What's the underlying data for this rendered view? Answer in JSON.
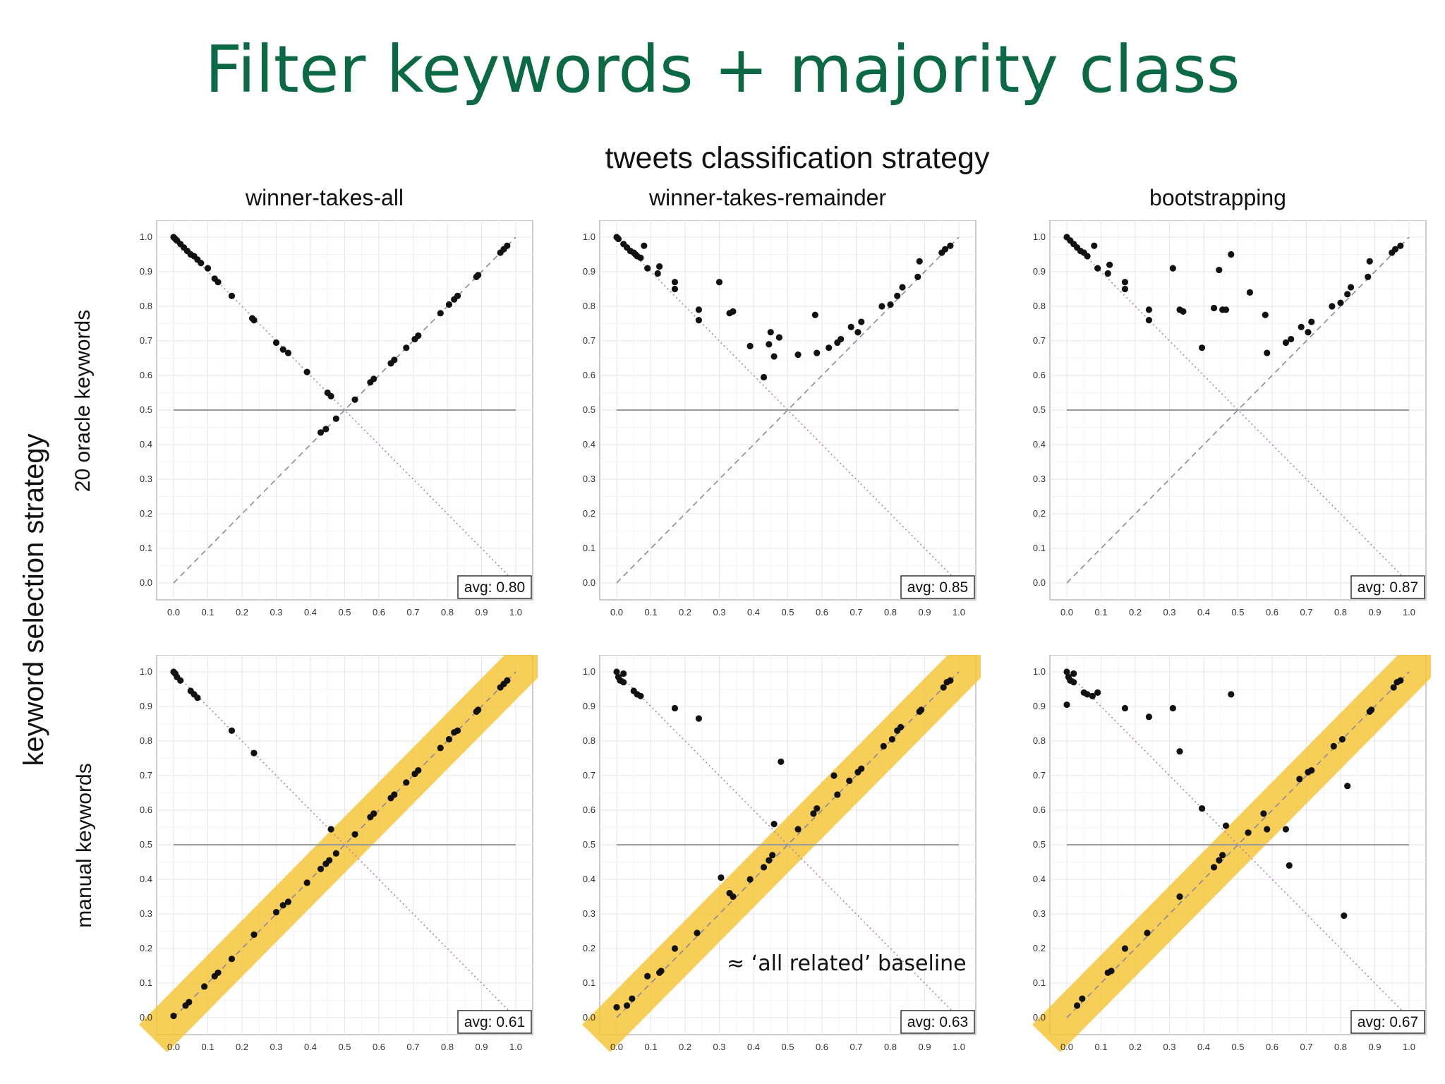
{
  "title": "Filter keywords + majority class",
  "column_axis_title": "tweets classification strategy",
  "column_titles": [
    "winner-takes-all",
    "winner-takes-remainder",
    "bootstrapping"
  ],
  "row_axis_title": "keyword selection strategy",
  "row_titles": [
    "20 oracle keywords",
    "manual keywords"
  ],
  "baseline_note": "≈ ‘all related’ baseline",
  "colors": {
    "title": "#0b6a45",
    "points": "#111111",
    "highlight": "#f5c22f",
    "diagonal": "#8a8aa0",
    "anti_diagonal": "#b080b0",
    "hline": "#999999"
  },
  "chart_data": [
    {
      "type": "scatter",
      "row": "20 oracle keywords",
      "column": "winner-takes-all",
      "xlim": [
        0,
        1
      ],
      "ylim": [
        0,
        1
      ],
      "ticks": [
        "0.0",
        "0.1",
        "0.2",
        "0.3",
        "0.4",
        "0.5",
        "0.6",
        "0.7",
        "0.8",
        "0.9",
        "1.0"
      ],
      "grid": true,
      "annotation": "avg: 0.80",
      "highlight_diagonal": false,
      "reference_lines": [
        "y = x (dashed)",
        "y = 1 - x (dotted)",
        "y = 0.5"
      ],
      "points": [
        [
          0.0,
          1.0
        ],
        [
          0.005,
          0.995
        ],
        [
          0.01,
          0.99
        ],
        [
          0.02,
          0.98
        ],
        [
          0.03,
          0.97
        ],
        [
          0.04,
          0.96
        ],
        [
          0.05,
          0.95
        ],
        [
          0.06,
          0.945
        ],
        [
          0.07,
          0.935
        ],
        [
          0.08,
          0.925
        ],
        [
          0.1,
          0.91
        ],
        [
          0.12,
          0.88
        ],
        [
          0.13,
          0.87
        ],
        [
          0.17,
          0.83
        ],
        [
          0.23,
          0.765
        ],
        [
          0.235,
          0.76
        ],
        [
          0.3,
          0.695
        ],
        [
          0.32,
          0.675
        ],
        [
          0.335,
          0.665
        ],
        [
          0.39,
          0.61
        ],
        [
          0.45,
          0.55
        ],
        [
          0.46,
          0.54
        ],
        [
          0.43,
          0.435
        ],
        [
          0.445,
          0.445
        ],
        [
          0.475,
          0.475
        ],
        [
          0.53,
          0.53
        ],
        [
          0.575,
          0.58
        ],
        [
          0.585,
          0.59
        ],
        [
          0.635,
          0.635
        ],
        [
          0.645,
          0.645
        ],
        [
          0.68,
          0.68
        ],
        [
          0.705,
          0.705
        ],
        [
          0.715,
          0.715
        ],
        [
          0.78,
          0.78
        ],
        [
          0.805,
          0.805
        ],
        [
          0.82,
          0.82
        ],
        [
          0.83,
          0.83
        ],
        [
          0.885,
          0.885
        ],
        [
          0.89,
          0.89
        ],
        [
          0.955,
          0.955
        ],
        [
          0.965,
          0.965
        ],
        [
          0.975,
          0.975
        ]
      ]
    },
    {
      "type": "scatter",
      "row": "20 oracle keywords",
      "column": "winner-takes-remainder",
      "xlim": [
        0,
        1
      ],
      "ylim": [
        0,
        1
      ],
      "ticks": [
        "0.0",
        "0.1",
        "0.2",
        "0.3",
        "0.4",
        "0.5",
        "0.6",
        "0.7",
        "0.8",
        "0.9",
        "1.0"
      ],
      "grid": true,
      "annotation": "avg: 0.85",
      "highlight_diagonal": false,
      "reference_lines": [
        "y = x (dashed)",
        "y = 1 - x (dotted)",
        "y = 0.5"
      ],
      "points": [
        [
          0.0,
          1.0
        ],
        [
          0.005,
          0.995
        ],
        [
          0.02,
          0.98
        ],
        [
          0.03,
          0.97
        ],
        [
          0.04,
          0.96
        ],
        [
          0.05,
          0.955
        ],
        [
          0.055,
          0.95
        ],
        [
          0.06,
          0.945
        ],
        [
          0.07,
          0.94
        ],
        [
          0.08,
          0.975
        ],
        [
          0.09,
          0.91
        ],
        [
          0.12,
          0.895
        ],
        [
          0.125,
          0.915
        ],
        [
          0.17,
          0.87
        ],
        [
          0.17,
          0.85
        ],
        [
          0.24,
          0.79
        ],
        [
          0.24,
          0.76
        ],
        [
          0.3,
          0.87
        ],
        [
          0.33,
          0.78
        ],
        [
          0.34,
          0.785
        ],
        [
          0.39,
          0.685
        ],
        [
          0.43,
          0.595
        ],
        [
          0.445,
          0.69
        ],
        [
          0.45,
          0.725
        ],
        [
          0.46,
          0.655
        ],
        [
          0.475,
          0.71
        ],
        [
          0.53,
          0.66
        ],
        [
          0.58,
          0.775
        ],
        [
          0.585,
          0.665
        ],
        [
          0.62,
          0.68
        ],
        [
          0.645,
          0.695
        ],
        [
          0.655,
          0.705
        ],
        [
          0.685,
          0.74
        ],
        [
          0.705,
          0.725
        ],
        [
          0.715,
          0.755
        ],
        [
          0.775,
          0.8
        ],
        [
          0.8,
          0.805
        ],
        [
          0.82,
          0.83
        ],
        [
          0.835,
          0.855
        ],
        [
          0.88,
          0.885
        ],
        [
          0.885,
          0.93
        ],
        [
          0.95,
          0.955
        ],
        [
          0.96,
          0.965
        ],
        [
          0.975,
          0.975
        ]
      ]
    },
    {
      "type": "scatter",
      "row": "20 oracle keywords",
      "column": "bootstrapping",
      "xlim": [
        0,
        1
      ],
      "ylim": [
        0,
        1
      ],
      "ticks": [
        "0.0",
        "0.1",
        "0.2",
        "0.3",
        "0.4",
        "0.5",
        "0.6",
        "0.7",
        "0.8",
        "0.9",
        "1.0"
      ],
      "grid": true,
      "annotation": "avg: 0.87",
      "highlight_diagonal": false,
      "reference_lines": [
        "y = x (dashed)",
        "y = 1 - x (dotted)",
        "y = 0.5"
      ],
      "points": [
        [
          0.0,
          1.0
        ],
        [
          0.01,
          0.99
        ],
        [
          0.02,
          0.98
        ],
        [
          0.03,
          0.97
        ],
        [
          0.04,
          0.96
        ],
        [
          0.05,
          0.955
        ],
        [
          0.06,
          0.945
        ],
        [
          0.08,
          0.975
        ],
        [
          0.09,
          0.91
        ],
        [
          0.12,
          0.895
        ],
        [
          0.125,
          0.92
        ],
        [
          0.17,
          0.87
        ],
        [
          0.17,
          0.85
        ],
        [
          0.24,
          0.79
        ],
        [
          0.24,
          0.76
        ],
        [
          0.31,
          0.91
        ],
        [
          0.33,
          0.79
        ],
        [
          0.34,
          0.785
        ],
        [
          0.395,
          0.68
        ],
        [
          0.43,
          0.795
        ],
        [
          0.445,
          0.905
        ],
        [
          0.455,
          0.79
        ],
        [
          0.465,
          0.79
        ],
        [
          0.48,
          0.95
        ],
        [
          0.535,
          0.84
        ],
        [
          0.58,
          0.775
        ],
        [
          0.585,
          0.665
        ],
        [
          0.64,
          0.695
        ],
        [
          0.655,
          0.705
        ],
        [
          0.685,
          0.74
        ],
        [
          0.705,
          0.725
        ],
        [
          0.715,
          0.755
        ],
        [
          0.775,
          0.8
        ],
        [
          0.8,
          0.81
        ],
        [
          0.82,
          0.835
        ],
        [
          0.83,
          0.855
        ],
        [
          0.88,
          0.885
        ],
        [
          0.885,
          0.93
        ],
        [
          0.95,
          0.955
        ],
        [
          0.96,
          0.965
        ],
        [
          0.975,
          0.975
        ]
      ]
    },
    {
      "type": "scatter",
      "row": "manual keywords",
      "column": "winner-takes-all",
      "xlim": [
        0,
        1
      ],
      "ylim": [
        0,
        1
      ],
      "ticks": [
        "0.0",
        "0.1",
        "0.2",
        "0.3",
        "0.4",
        "0.5",
        "0.6",
        "0.7",
        "0.8",
        "0.9",
        "1.0"
      ],
      "grid": true,
      "annotation": "avg: 0.61",
      "highlight_diagonal": true,
      "reference_lines": [
        "y = x (dashed)",
        "y = 1 - x (dotted)",
        "y = 0.5"
      ],
      "points": [
        [
          0.0,
          1.0
        ],
        [
          0.005,
          0.995
        ],
        [
          0.01,
          0.985
        ],
        [
          0.02,
          0.975
        ],
        [
          0.05,
          0.945
        ],
        [
          0.06,
          0.935
        ],
        [
          0.07,
          0.925
        ],
        [
          0.17,
          0.83
        ],
        [
          0.235,
          0.765
        ],
        [
          0.46,
          0.545
        ],
        [
          0.0,
          0.005
        ],
        [
          0.035,
          0.035
        ],
        [
          0.045,
          0.045
        ],
        [
          0.09,
          0.09
        ],
        [
          0.12,
          0.12
        ],
        [
          0.13,
          0.13
        ],
        [
          0.17,
          0.17
        ],
        [
          0.235,
          0.24
        ],
        [
          0.3,
          0.305
        ],
        [
          0.32,
          0.325
        ],
        [
          0.335,
          0.335
        ],
        [
          0.39,
          0.39
        ],
        [
          0.43,
          0.43
        ],
        [
          0.445,
          0.445
        ],
        [
          0.455,
          0.455
        ],
        [
          0.475,
          0.475
        ],
        [
          0.53,
          0.53
        ],
        [
          0.575,
          0.58
        ],
        [
          0.585,
          0.59
        ],
        [
          0.635,
          0.635
        ],
        [
          0.645,
          0.645
        ],
        [
          0.68,
          0.68
        ],
        [
          0.705,
          0.705
        ],
        [
          0.715,
          0.715
        ],
        [
          0.78,
          0.78
        ],
        [
          0.805,
          0.805
        ],
        [
          0.82,
          0.825
        ],
        [
          0.83,
          0.83
        ],
        [
          0.885,
          0.885
        ],
        [
          0.89,
          0.89
        ],
        [
          0.955,
          0.955
        ],
        [
          0.965,
          0.965
        ],
        [
          0.975,
          0.975
        ]
      ]
    },
    {
      "type": "scatter",
      "row": "manual keywords",
      "column": "winner-takes-remainder",
      "xlim": [
        0,
        1
      ],
      "ylim": [
        0,
        1
      ],
      "ticks": [
        "0.0",
        "0.1",
        "0.2",
        "0.3",
        "0.4",
        "0.5",
        "0.6",
        "0.7",
        "0.8",
        "0.9",
        "1.0"
      ],
      "grid": true,
      "annotation": "avg: 0.63",
      "highlight_diagonal": true,
      "reference_lines": [
        "y = x (dashed)",
        "y = 1 - x (dotted)",
        "y = 0.5"
      ],
      "points": [
        [
          0.0,
          1.0
        ],
        [
          0.005,
          0.985
        ],
        [
          0.01,
          0.975
        ],
        [
          0.02,
          0.995
        ],
        [
          0.02,
          0.97
        ],
        [
          0.05,
          0.945
        ],
        [
          0.06,
          0.935
        ],
        [
          0.07,
          0.93
        ],
        [
          0.17,
          0.895
        ],
        [
          0.24,
          0.865
        ],
        [
          0.48,
          0.74
        ],
        [
          0.46,
          0.56
        ],
        [
          0.0,
          0.03
        ],
        [
          0.03,
          0.035
        ],
        [
          0.045,
          0.055
        ],
        [
          0.09,
          0.12
        ],
        [
          0.125,
          0.13
        ],
        [
          0.13,
          0.135
        ],
        [
          0.17,
          0.2
        ],
        [
          0.235,
          0.245
        ],
        [
          0.305,
          0.405
        ],
        [
          0.33,
          0.36
        ],
        [
          0.34,
          0.35
        ],
        [
          0.39,
          0.4
        ],
        [
          0.43,
          0.435
        ],
        [
          0.445,
          0.455
        ],
        [
          0.455,
          0.47
        ],
        [
          0.53,
          0.545
        ],
        [
          0.575,
          0.59
        ],
        [
          0.585,
          0.605
        ],
        [
          0.635,
          0.7
        ],
        [
          0.645,
          0.645
        ],
        [
          0.68,
          0.685
        ],
        [
          0.705,
          0.71
        ],
        [
          0.715,
          0.72
        ],
        [
          0.78,
          0.785
        ],
        [
          0.805,
          0.805
        ],
        [
          0.82,
          0.83
        ],
        [
          0.83,
          0.84
        ],
        [
          0.885,
          0.885
        ],
        [
          0.89,
          0.89
        ],
        [
          0.955,
          0.955
        ],
        [
          0.965,
          0.97
        ],
        [
          0.975,
          0.975
        ]
      ]
    },
    {
      "type": "scatter",
      "row": "manual keywords",
      "column": "bootstrapping",
      "xlim": [
        0,
        1
      ],
      "ylim": [
        0,
        1
      ],
      "ticks": [
        "0.0",
        "0.1",
        "0.2",
        "0.3",
        "0.4",
        "0.5",
        "0.6",
        "0.7",
        "0.8",
        "0.9",
        "1.0"
      ],
      "grid": true,
      "annotation": "avg: 0.67",
      "highlight_diagonal": true,
      "reference_lines": [
        "y = x (dashed)",
        "y = 1 - x (dotted)",
        "y = 0.5"
      ],
      "points": [
        [
          0.0,
          1.0
        ],
        [
          0.005,
          0.985
        ],
        [
          0.01,
          0.975
        ],
        [
          0.02,
          0.995
        ],
        [
          0.02,
          0.97
        ],
        [
          0.0,
          0.905
        ],
        [
          0.05,
          0.94
        ],
        [
          0.06,
          0.935
        ],
        [
          0.075,
          0.93
        ],
        [
          0.09,
          0.94
        ],
        [
          0.17,
          0.895
        ],
        [
          0.24,
          0.87
        ],
        [
          0.31,
          0.895
        ],
        [
          0.33,
          0.77
        ],
        [
          0.48,
          0.935
        ],
        [
          0.395,
          0.605
        ],
        [
          0.465,
          0.555
        ],
        [
          0.64,
          0.545
        ],
        [
          0.65,
          0.44
        ],
        [
          0.82,
          0.67
        ],
        [
          0.81,
          0.295
        ],
        [
          0.03,
          0.035
        ],
        [
          0.045,
          0.055
        ],
        [
          0.12,
          0.13
        ],
        [
          0.13,
          0.135
        ],
        [
          0.17,
          0.2
        ],
        [
          0.235,
          0.245
        ],
        [
          0.33,
          0.35
        ],
        [
          0.43,
          0.435
        ],
        [
          0.445,
          0.455
        ],
        [
          0.455,
          0.47
        ],
        [
          0.53,
          0.535
        ],
        [
          0.575,
          0.59
        ],
        [
          0.585,
          0.545
        ],
        [
          0.68,
          0.69
        ],
        [
          0.705,
          0.71
        ],
        [
          0.715,
          0.715
        ],
        [
          0.78,
          0.785
        ],
        [
          0.805,
          0.805
        ],
        [
          0.885,
          0.885
        ],
        [
          0.89,
          0.89
        ],
        [
          0.955,
          0.955
        ],
        [
          0.965,
          0.97
        ],
        [
          0.975,
          0.975
        ]
      ]
    }
  ]
}
